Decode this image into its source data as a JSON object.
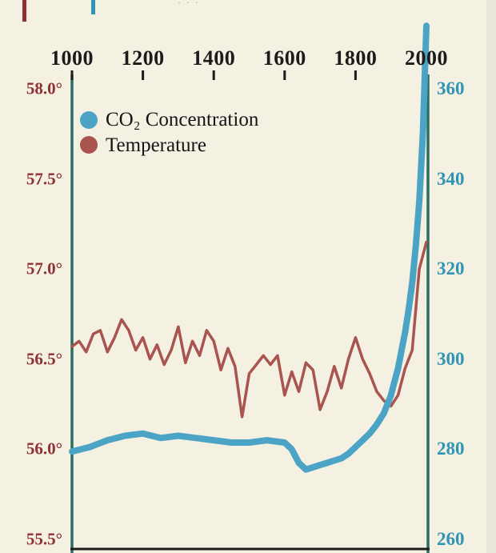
{
  "page": {
    "background": "#f4f0e2"
  },
  "legend": {
    "co2_label": "CO₂ Concentration",
    "temp_label": "Temperature"
  },
  "colors": {
    "co2_line": "#4ba4c5",
    "temp_line": "#a9544f",
    "left_axis_labels": "#8f3132",
    "right_axis_labels": "#2e95b4",
    "axis_frame": "#2a6f62",
    "axis_dark": "#1c1c1c",
    "year_labels": "#1b1b1b"
  },
  "chart_data": {
    "type": "line",
    "title": "",
    "grid": false,
    "legend_position": "top-left",
    "x_axis": {
      "position": "top",
      "range": [
        1000,
        2000
      ],
      "ticks": [
        "1000",
        "1200",
        "1400",
        "1600",
        "1800",
        "2000"
      ],
      "tick_values": [
        1000,
        1200,
        1400,
        1600,
        1800,
        2000
      ]
    },
    "left_axis": {
      "range": [
        55.5,
        58.0
      ],
      "ticks": [
        "58.0°",
        "57.5°",
        "57.0°",
        "56.5°",
        "56.0°",
        "55.5°"
      ],
      "tick_values": [
        58.0,
        57.5,
        57.0,
        56.5,
        56.0,
        55.5
      ]
    },
    "right_axis": {
      "range": [
        260,
        360
      ],
      "ticks": [
        "360",
        "340",
        "320",
        "300",
        "280",
        "260"
      ],
      "tick_values": [
        360,
        340,
        320,
        300,
        280,
        260
      ]
    },
    "series": [
      {
        "name": "Temperature",
        "axis": "left",
        "color": "#a9544f",
        "width": 3.5,
        "points": [
          [
            1000,
            56.57
          ],
          [
            1020,
            56.6
          ],
          [
            1040,
            56.54
          ],
          [
            1060,
            56.64
          ],
          [
            1080,
            56.66
          ],
          [
            1100,
            56.54
          ],
          [
            1120,
            56.62
          ],
          [
            1140,
            56.72
          ],
          [
            1160,
            56.66
          ],
          [
            1180,
            56.55
          ],
          [
            1200,
            56.62
          ],
          [
            1220,
            56.5
          ],
          [
            1240,
            56.58
          ],
          [
            1260,
            56.47
          ],
          [
            1280,
            56.55
          ],
          [
            1300,
            56.68
          ],
          [
            1320,
            56.48
          ],
          [
            1340,
            56.6
          ],
          [
            1360,
            56.52
          ],
          [
            1380,
            56.66
          ],
          [
            1400,
            56.6
          ],
          [
            1420,
            56.44
          ],
          [
            1440,
            56.56
          ],
          [
            1460,
            56.46
          ],
          [
            1480,
            56.18
          ],
          [
            1500,
            56.42
          ],
          [
            1520,
            56.47
          ],
          [
            1540,
            56.52
          ],
          [
            1560,
            56.47
          ],
          [
            1580,
            56.52
          ],
          [
            1600,
            56.3
          ],
          [
            1620,
            56.43
          ],
          [
            1640,
            56.32
          ],
          [
            1660,
            56.48
          ],
          [
            1680,
            56.44
          ],
          [
            1700,
            56.22
          ],
          [
            1720,
            56.32
          ],
          [
            1740,
            56.46
          ],
          [
            1760,
            56.34
          ],
          [
            1780,
            56.5
          ],
          [
            1800,
            56.62
          ],
          [
            1820,
            56.5
          ],
          [
            1840,
            56.42
          ],
          [
            1860,
            56.32
          ],
          [
            1880,
            56.27
          ],
          [
            1900,
            56.24
          ],
          [
            1920,
            56.3
          ],
          [
            1940,
            56.45
          ],
          [
            1960,
            56.55
          ],
          [
            1980,
            57.0
          ],
          [
            2000,
            57.15
          ]
        ]
      },
      {
        "name": "CO₂ Concentration",
        "axis": "right",
        "color": "#4ba4c5",
        "width": 8,
        "points": [
          [
            1000,
            279.5
          ],
          [
            1050,
            280.5
          ],
          [
            1100,
            282
          ],
          [
            1150,
            283
          ],
          [
            1200,
            283.5
          ],
          [
            1250,
            282.5
          ],
          [
            1300,
            283
          ],
          [
            1350,
            282.5
          ],
          [
            1400,
            282
          ],
          [
            1450,
            281.5
          ],
          [
            1500,
            281.5
          ],
          [
            1550,
            282
          ],
          [
            1600,
            281.5
          ],
          [
            1620,
            280
          ],
          [
            1640,
            277
          ],
          [
            1660,
            275.5
          ],
          [
            1680,
            276
          ],
          [
            1700,
            276.5
          ],
          [
            1720,
            277
          ],
          [
            1740,
            277.5
          ],
          [
            1760,
            278
          ],
          [
            1780,
            279
          ],
          [
            1800,
            280.5
          ],
          [
            1820,
            282
          ],
          [
            1840,
            283.5
          ],
          [
            1860,
            285.5
          ],
          [
            1880,
            288
          ],
          [
            1900,
            292
          ],
          [
            1910,
            295
          ],
          [
            1920,
            298
          ],
          [
            1930,
            302
          ],
          [
            1940,
            306
          ],
          [
            1950,
            311
          ],
          [
            1960,
            317
          ],
          [
            1970,
            325
          ],
          [
            1980,
            335
          ],
          [
            1990,
            350
          ],
          [
            2000,
            374
          ]
        ]
      }
    ]
  },
  "artifacts": {
    "dots": "· · ·"
  }
}
